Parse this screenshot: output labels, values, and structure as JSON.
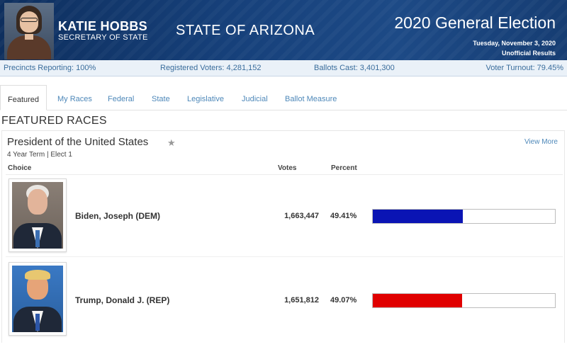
{
  "header": {
    "official_name": "KATIE HOBBS",
    "official_title": "SECRETARY OF STATE",
    "state_name": "STATE OF ARIZONA",
    "election_title": "2020 General Election",
    "election_date": "Tuesday, November 3, 2020",
    "results_status": "Unofficial Results"
  },
  "stats": {
    "precincts": "Precincts Reporting: 100%",
    "registered": "Registered Voters: 4,281,152",
    "ballots": "Ballots Cast: 3,401,300",
    "turnout": "Voter Turnout: 79.45%"
  },
  "tabs": [
    {
      "label": "Featured",
      "active": true
    },
    {
      "label": "My Races"
    },
    {
      "label": "Federal"
    },
    {
      "label": "State"
    },
    {
      "label": "Legislative"
    },
    {
      "label": "Judicial"
    },
    {
      "label": "Ballot Measure"
    }
  ],
  "section_title": "FEATURED RACES",
  "race": {
    "title": "President of the United States",
    "star_icon": "★",
    "meta": "4 Year Term  |  Elect 1",
    "view_more": "View More",
    "columns": {
      "choice": "Choice",
      "votes": "Votes",
      "percent": "Percent"
    },
    "candidates": [
      {
        "name": "Biden, Joseph (DEM)",
        "votes": "1,663,447",
        "percent": "49.41%",
        "share": 0.4941,
        "color": "#0a14b4"
      },
      {
        "name": "Trump, Donald J. (REP)",
        "votes": "1,651,812",
        "percent": "49.07%",
        "share": 0.4907,
        "color": "#e00000"
      }
    ]
  }
}
